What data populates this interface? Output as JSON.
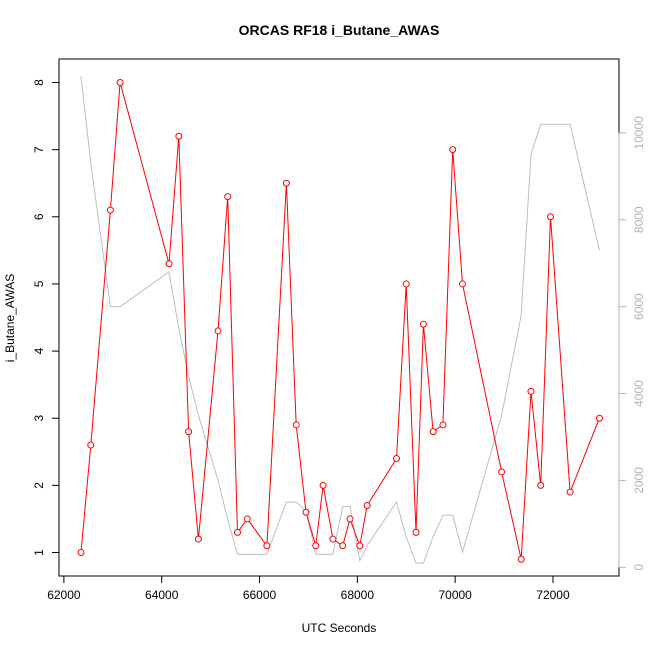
{
  "chart_data": {
    "type": "line",
    "title": "ORCAS RF18 i_Butane_AWAS",
    "xlabel": "UTC Seconds",
    "ylabel": "i_Butane_AWAS",
    "xlim": [
      61900,
      73350
    ],
    "ylim": [
      0.65,
      8.35
    ],
    "y2lim": [
      -200,
      11700
    ],
    "x_ticks": [
      62000,
      64000,
      66000,
      68000,
      70000,
      72000
    ],
    "y_ticks": [
      1,
      2,
      3,
      4,
      5,
      6,
      7,
      8
    ],
    "y2_ticks": [
      0,
      2000,
      4000,
      6000,
      8000,
      10000
    ],
    "series": [
      {
        "color": "#ff0000",
        "axis": "left",
        "markers": "open-circle",
        "x": [
          62350,
          62550,
          62950,
          63150,
          64150,
          64350,
          64550,
          64750,
          65150,
          65350,
          65550,
          65750,
          66150,
          66550,
          66750,
          66950,
          67150,
          67300,
          67500,
          67700,
          67850,
          68050,
          68200,
          68800,
          69000,
          69200,
          69350,
          69550,
          69750,
          69950,
          70150,
          70950,
          71350,
          71550,
          71750,
          71950,
          72350,
          72950
        ],
        "values": [
          1.0,
          2.6,
          6.1,
          8.0,
          5.3,
          7.2,
          2.8,
          1.2,
          4.3,
          6.3,
          1.3,
          1.5,
          1.1,
          6.5,
          2.9,
          1.6,
          1.1,
          2.0,
          1.2,
          1.1,
          1.5,
          1.1,
          1.7,
          2.4,
          5.0,
          1.3,
          4.4,
          2.8,
          2.9,
          7.0,
          5.0,
          2.2,
          0.9,
          3.4,
          2.0,
          6.0,
          1.9,
          3.0
        ]
      },
      {
        "color": "#bebebe",
        "axis": "right",
        "markers": "none",
        "x": [
          62350,
          62550,
          62950,
          63150,
          64150,
          64350,
          64550,
          64750,
          65150,
          65350,
          65550,
          65750,
          66150,
          66550,
          66750,
          66950,
          67150,
          67300,
          67500,
          67700,
          67850,
          68050,
          68200,
          68800,
          69000,
          69200,
          69350,
          69550,
          69750,
          69950,
          70150,
          70950,
          71350,
          71550,
          71750,
          71950,
          72350,
          72950
        ],
        "values": [
          11300,
          9300,
          6000,
          6000,
          6800,
          5500,
          4400,
          3500,
          2000,
          1100,
          300,
          300,
          300,
          1500,
          1500,
          1300,
          300,
          300,
          300,
          1400,
          1400,
          150,
          500,
          1500,
          700,
          100,
          100,
          700,
          1200,
          1200,
          350,
          3500,
          5800,
          9500,
          10200,
          10200,
          10200,
          7300
        ]
      }
    ],
    "grid": false,
    "legend": "none"
  }
}
